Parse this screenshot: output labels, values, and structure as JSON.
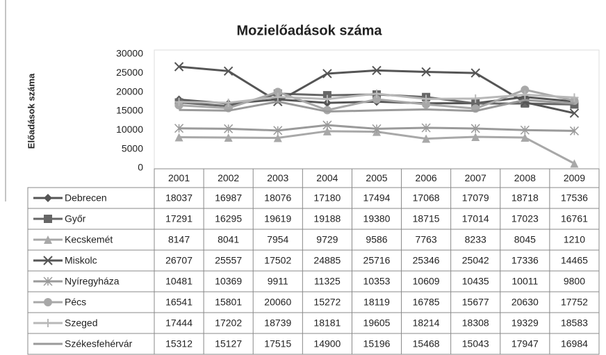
{
  "chart_data": {
    "type": "line",
    "title": "Mozielőadások száma",
    "y_label": "Előadások száma",
    "categories": [
      "2001",
      "2002",
      "2003",
      "2004",
      "2005",
      "2006",
      "2007",
      "2008",
      "2009"
    ],
    "ylim": [
      0,
      30000
    ],
    "yticks": [
      0,
      5000,
      10000,
      15000,
      20000,
      25000,
      30000
    ],
    "grid": false,
    "series": [
      {
        "name": "Debrecen",
        "color": "#555555",
        "marker": "diamond",
        "values": [
          18037,
          16987,
          18076,
          17180,
          17494,
          17068,
          17079,
          18718,
          17536
        ]
      },
      {
        "name": "Győr",
        "color": "#666666",
        "marker": "square",
        "values": [
          17291,
          16295,
          19619,
          19188,
          19380,
          18715,
          17014,
          17023,
          16761
        ]
      },
      {
        "name": "Kecskemét",
        "color": "#a8a8a8",
        "marker": "triangle",
        "values": [
          8147,
          8041,
          7954,
          9729,
          9586,
          7763,
          8233,
          8045,
          1210
        ]
      },
      {
        "name": "Miskolc",
        "color": "#555555",
        "marker": "x",
        "values": [
          26707,
          25557,
          17502,
          24885,
          25716,
          25346,
          25042,
          17336,
          14465
        ]
      },
      {
        "name": "Nyíregyháza",
        "color": "#9a9a9a",
        "marker": "star",
        "values": [
          10481,
          10369,
          9911,
          11325,
          10353,
          10609,
          10435,
          10011,
          9800
        ]
      },
      {
        "name": "Pécs",
        "color": "#a8a8a8",
        "marker": "circle",
        "values": [
          16541,
          15801,
          20060,
          15272,
          18119,
          16785,
          15677,
          20630,
          17752
        ]
      },
      {
        "name": "Szeged",
        "color": "#b8b8b8",
        "marker": "plus",
        "values": [
          17444,
          17202,
          18739,
          18181,
          19605,
          18214,
          18308,
          19329,
          18583
        ]
      },
      {
        "name": "Székesfehérvár",
        "color": "#9a9a9a",
        "marker": "none",
        "values": [
          15312,
          15127,
          17515,
          14900,
          15196,
          15468,
          15043,
          17947,
          16984
        ]
      }
    ]
  }
}
